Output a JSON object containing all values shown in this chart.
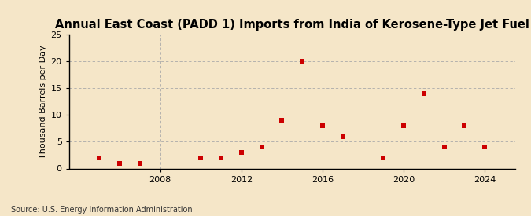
{
  "title": "Annual East Coast (PADD 1) Imports from India of Kerosene-Type Jet Fuel",
  "ylabel": "Thousand Barrels per Day",
  "source": "Source: U.S. Energy Information Administration",
  "background_color": "#f5e6c8",
  "dot_color": "#cc0000",
  "years": [
    2005,
    2006,
    2007,
    2010,
    2011,
    2012,
    2013,
    2014,
    2015,
    2016,
    2017,
    2019,
    2020,
    2021,
    2022,
    2023,
    2024
  ],
  "values": [
    2,
    1,
    1,
    2,
    2,
    3,
    4,
    9,
    20,
    8,
    6,
    2,
    8,
    14,
    4,
    8,
    4
  ],
  "xlim": [
    2003.5,
    2025.5
  ],
  "ylim": [
    0,
    25
  ],
  "yticks": [
    0,
    5,
    10,
    15,
    20,
    25
  ],
  "xticks": [
    2008,
    2012,
    2016,
    2020,
    2024
  ],
  "grid_color": "#aaaaaa",
  "title_fontsize": 10.5,
  "label_fontsize": 8,
  "tick_fontsize": 8,
  "source_fontsize": 7
}
